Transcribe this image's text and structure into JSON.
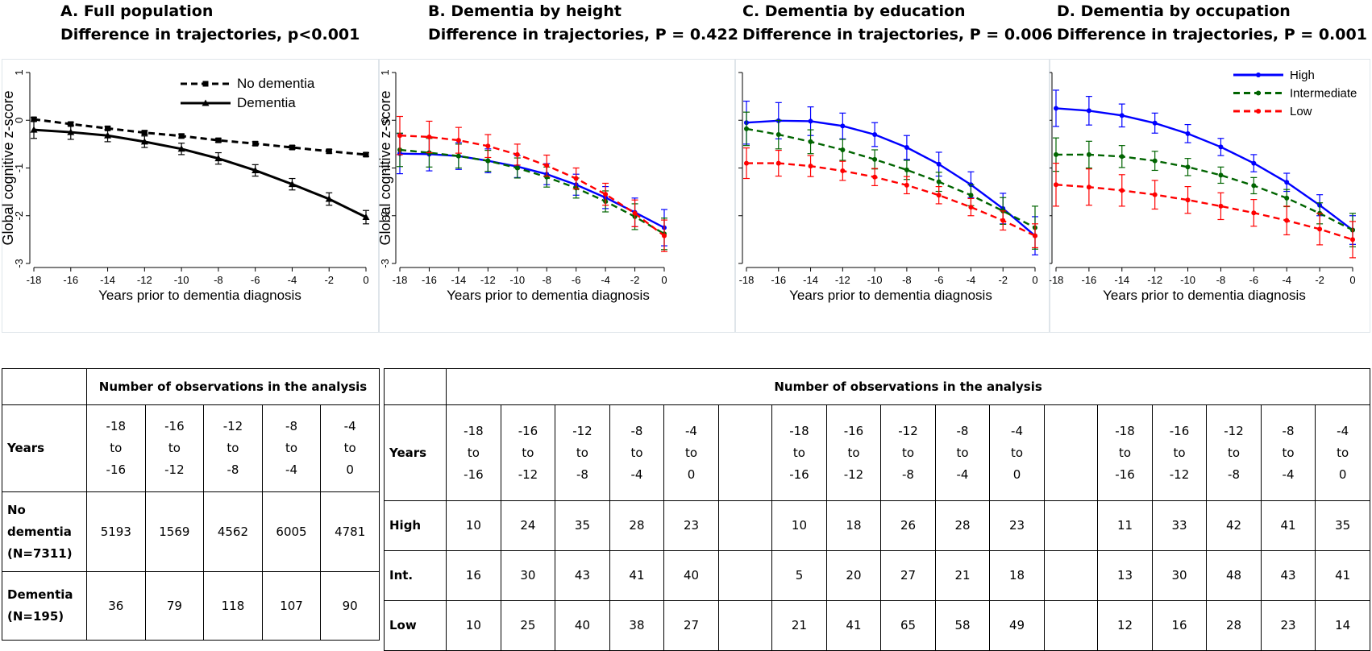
{
  "panels": [
    {
      "title": "A. Full population",
      "subtitle": "Difference in trajectories, p<0.001"
    },
    {
      "title": "B. Dementia by height",
      "subtitle": "Difference in trajectories, P = 0.422"
    },
    {
      "title": "C. Dementia by education",
      "subtitle": "Difference in trajectories, P = 0.006"
    },
    {
      "title": "D. Dementia by occupation",
      "subtitle": "Difference in trajectories, P = 0.001"
    }
  ],
  "chart_data": [
    {
      "type": "line",
      "title": "A. Full population",
      "subtitle": "Difference in trajectories, p<0.001",
      "xlabel": "Years prior to dementia diagnosis",
      "ylabel": "Global cognitive z-score",
      "x": [
        -18,
        -16,
        -14,
        -12,
        -10,
        -8,
        -6,
        -4,
        -2,
        0
      ],
      "xlim": [
        -18,
        0
      ],
      "ylim": [
        -3,
        1
      ],
      "xticks": [
        "-18",
        "-16",
        "-14",
        "-12",
        "-10",
        "-8",
        "-6",
        "-4",
        "-2",
        "0"
      ],
      "yticks": [
        "-3",
        "-2",
        "-1",
        "0",
        "1"
      ],
      "legend_position": "top-right",
      "series": [
        {
          "name": "No dementia",
          "color": "#000000",
          "dash": "dashed",
          "marker": "square",
          "values": [
            0.02,
            -0.08,
            -0.17,
            -0.26,
            -0.33,
            -0.42,
            -0.49,
            -0.57,
            -0.65,
            -0.72
          ],
          "err": [
            0.04,
            0.04,
            0.04,
            0.04,
            0.04,
            0.04,
            0.04,
            0.04,
            0.04,
            0.04
          ]
        },
        {
          "name": "Dementia",
          "color": "#000000",
          "dash": "solid",
          "marker": "triangle",
          "values": [
            -0.2,
            -0.25,
            -0.32,
            -0.45,
            -0.6,
            -0.8,
            -1.05,
            -1.34,
            -1.65,
            -2.03
          ],
          "err": [
            0.18,
            0.15,
            0.13,
            0.12,
            0.12,
            0.12,
            0.12,
            0.12,
            0.13,
            0.14
          ]
        }
      ]
    },
    {
      "type": "line",
      "title": "B. Dementia by height",
      "subtitle": "Difference in trajectories, P = 0.422",
      "xlabel": "Years prior to dementia diagnosis",
      "ylabel": "Global cognitive z-score",
      "x": [
        -18,
        -16,
        -14,
        -12,
        -10,
        -8,
        -6,
        -4,
        -2,
        0
      ],
      "xlim": [
        -18,
        0
      ],
      "ylim": [
        -3,
        1
      ],
      "xticks": [
        "-18",
        "-16",
        "-14",
        "-12",
        "-10",
        "-8",
        "-6",
        "-4",
        "-2",
        "0"
      ],
      "yticks": [
        "-3",
        "-2",
        "-1",
        "0",
        "1"
      ],
      "series": [
        {
          "name": "",
          "color": "#0000ff",
          "dash": "solid",
          "marker": "circle",
          "values": [
            -0.7,
            -0.71,
            -0.75,
            -0.85,
            -0.97,
            -1.13,
            -1.35,
            -1.62,
            -1.93,
            -2.25
          ],
          "err": [
            0.42,
            0.35,
            0.28,
            0.25,
            0.23,
            0.22,
            0.22,
            0.23,
            0.3,
            0.38
          ]
        },
        {
          "name": "",
          "color": "#006400",
          "dash": "dashed",
          "marker": "circle",
          "values": [
            -0.62,
            -0.68,
            -0.75,
            -0.85,
            -1.0,
            -1.19,
            -1.42,
            -1.7,
            -2.02,
            -2.38
          ],
          "err": [
            0.35,
            0.3,
            0.25,
            0.22,
            0.21,
            0.21,
            0.21,
            0.22,
            0.27,
            0.33
          ]
        },
        {
          "name": "",
          "color": "#ff0000",
          "dash": "dashed",
          "marker": "circle",
          "values": [
            -0.32,
            -0.35,
            -0.42,
            -0.54,
            -0.72,
            -0.95,
            -1.22,
            -1.55,
            -1.95,
            -2.42
          ],
          "err": [
            0.4,
            0.33,
            0.27,
            0.24,
            0.22,
            0.22,
            0.22,
            0.23,
            0.28,
            0.33
          ]
        }
      ]
    },
    {
      "type": "line",
      "title": "C. Dementia by education",
      "subtitle": "Difference in trajectories, P = 0.006",
      "xlabel": "Years prior to dementia diagnosis",
      "ylabel": "",
      "x": [
        -18,
        -16,
        -14,
        -12,
        -10,
        -8,
        -6,
        -4,
        -2,
        0
      ],
      "xlim": [
        -18,
        0
      ],
      "ylim": [
        -3,
        1
      ],
      "xticks": [
        "-18",
        "-16",
        "-14",
        "-12",
        "-10",
        "-8",
        "-6",
        "-4",
        "-2",
        "0"
      ],
      "yticks": [
        "",
        "",
        "",
        "",
        ""
      ],
      "series": [
        {
          "name": "",
          "color": "#0000ff",
          "dash": "solid",
          "marker": "circle",
          "values": [
            -0.05,
            -0.01,
            -0.02,
            -0.12,
            -0.3,
            -0.57,
            -0.92,
            -1.35,
            -1.85,
            -2.42
          ],
          "err": [
            0.45,
            0.38,
            0.3,
            0.27,
            0.25,
            0.25,
            0.25,
            0.27,
            0.32,
            0.4
          ]
        },
        {
          "name": "",
          "color": "#006400",
          "dash": "dashed",
          "marker": "circle",
          "values": [
            -0.18,
            -0.3,
            -0.45,
            -0.62,
            -0.82,
            -1.04,
            -1.29,
            -1.57,
            -1.9,
            -2.25
          ],
          "err": [
            0.35,
            0.3,
            0.25,
            0.22,
            0.2,
            0.2,
            0.2,
            0.22,
            0.28,
            0.45
          ]
        },
        {
          "name": "",
          "color": "#ff0000",
          "dash": "dashed",
          "marker": "circle",
          "values": [
            -0.9,
            -0.9,
            -0.96,
            -1.06,
            -1.19,
            -1.36,
            -1.57,
            -1.82,
            -2.1,
            -2.42
          ],
          "err": [
            0.32,
            0.27,
            0.22,
            0.2,
            0.18,
            0.18,
            0.18,
            0.18,
            0.2,
            0.25
          ]
        }
      ]
    },
    {
      "type": "line",
      "title": "D. Dementia by occupation",
      "subtitle": "Difference in trajectories, P = 0.001",
      "xlabel": "Years prior to dementia diagnosis",
      "ylabel": "",
      "x": [
        -18,
        -16,
        -14,
        -12,
        -10,
        -8,
        -6,
        -4,
        -2,
        0
      ],
      "xlim": [
        -18,
        0
      ],
      "ylim": [
        -3,
        1
      ],
      "xticks": [
        "-18",
        "-16",
        "-14",
        "-12",
        "-10",
        "-8",
        "-6",
        "-4",
        "-2",
        "0"
      ],
      "yticks": [
        "",
        "",
        "",
        "",
        ""
      ],
      "legend_position": "top-right",
      "series": [
        {
          "name": "High",
          "color": "#0000ff",
          "dash": "solid",
          "marker": "circle",
          "values": [
            0.25,
            0.2,
            0.1,
            -0.06,
            -0.28,
            -0.56,
            -0.9,
            -1.3,
            -1.78,
            -2.3
          ],
          "err": [
            0.38,
            0.3,
            0.24,
            0.21,
            0.19,
            0.18,
            0.18,
            0.19,
            0.22,
            0.3
          ]
        },
        {
          "name": "Intermediate",
          "color": "#006400",
          "dash": "dashed",
          "marker": "circle",
          "values": [
            -0.72,
            -0.72,
            -0.76,
            -0.85,
            -0.98,
            -1.15,
            -1.37,
            -1.63,
            -1.95,
            -2.3
          ],
          "err": [
            0.35,
            0.28,
            0.23,
            0.2,
            0.18,
            0.17,
            0.17,
            0.18,
            0.22,
            0.35
          ]
        },
        {
          "name": "Low",
          "color": "#ff0000",
          "dash": "dashed",
          "marker": "circle",
          "values": [
            -1.35,
            -1.4,
            -1.47,
            -1.56,
            -1.67,
            -1.8,
            -1.94,
            -2.1,
            -2.28,
            -2.5
          ],
          "err": [
            0.45,
            0.38,
            0.33,
            0.3,
            0.28,
            0.28,
            0.28,
            0.3,
            0.33,
            0.38
          ]
        }
      ]
    }
  ],
  "table_left": {
    "header": "Number of observations in the analysis",
    "years_label": "Years",
    "periods": [
      "-18\nto\n-16",
      "-16\nto\n-12",
      "-12\nto\n-8",
      "-8\nto\n-4",
      "-4\nto\n0"
    ],
    "rows": [
      {
        "label": "No\ndementia\n(N=7311)",
        "values": [
          "5193",
          "1569",
          "4562",
          "6005",
          "4781"
        ]
      },
      {
        "label": "Dementia\n(N=195)",
        "values": [
          "36",
          "79",
          "118",
          "107",
          "90"
        ]
      }
    ]
  },
  "table_right": {
    "header": "Number of observations in the analysis",
    "years_label": "Years",
    "periods": [
      "-18\nto\n-16",
      "-16\nto\n-12",
      "-12\nto\n-8",
      "-8\nto\n-4",
      "-4\nto\n0"
    ],
    "rows": [
      {
        "label": "High",
        "groups": [
          [
            "10",
            "24",
            "35",
            "28",
            "23"
          ],
          [
            "10",
            "18",
            "26",
            "28",
            "23"
          ],
          [
            "11",
            "33",
            "42",
            "41",
            "35"
          ]
        ]
      },
      {
        "label": "Int.",
        "groups": [
          [
            "16",
            "30",
            "43",
            "41",
            "40"
          ],
          [
            "5",
            "20",
            "27",
            "21",
            "18"
          ],
          [
            "13",
            "30",
            "48",
            "43",
            "41"
          ]
        ]
      },
      {
        "label": "Low",
        "groups": [
          [
            "10",
            "25",
            "40",
            "38",
            "27"
          ],
          [
            "21",
            "41",
            "65",
            "58",
            "49"
          ],
          [
            "12",
            "16",
            "28",
            "23",
            "14"
          ]
        ]
      }
    ]
  }
}
